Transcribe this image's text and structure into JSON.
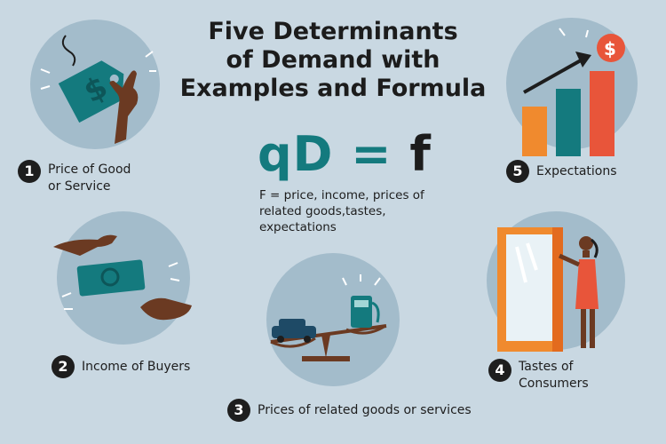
{
  "title": {
    "line1": "Five Determinants",
    "line2": "of Demand with",
    "line3": "Examples and Formula"
  },
  "formula": {
    "lhs": "qD",
    "eq": "=",
    "rhs": "f",
    "description": "F = price, income, prices of related goods,tastes, expectations"
  },
  "determinants": [
    {
      "number": "1",
      "label_line1": "Price of Good",
      "label_line2": "or Service",
      "icon": "price-tag-icon"
    },
    {
      "number": "2",
      "label_line1": "Income of Buyers",
      "label_line2": "",
      "icon": "money-handoff-icon"
    },
    {
      "number": "3",
      "label_line1": "Prices of related goods or services",
      "label_line2": "",
      "icon": "scale-car-fuel-icon"
    },
    {
      "number": "4",
      "label_line1": "Tastes of",
      "label_line2": "Consumers",
      "icon": "shopper-window-icon"
    },
    {
      "number": "5",
      "label_line1": "Expectations",
      "label_line2": "",
      "icon": "rising-bars-icon"
    }
  ],
  "colors": {
    "background": "#c9d8e2",
    "circle": "#a3bccb",
    "teal": "#147a7e",
    "orange": "#f08a2e",
    "red": "#e8553a",
    "skin": "#6b3a22"
  }
}
